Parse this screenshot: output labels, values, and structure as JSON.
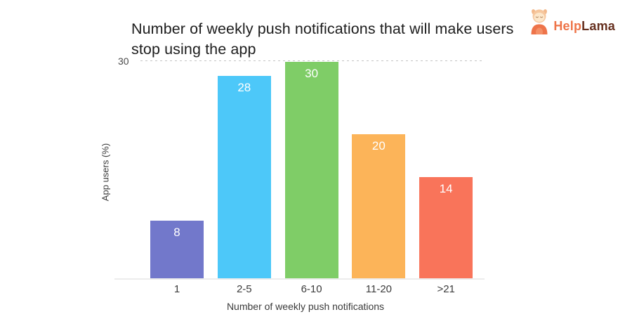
{
  "logo": {
    "brand_part1": "Help",
    "brand_part2": "Lama",
    "mascot": "llama-mascot-icon",
    "colors": {
      "brand_part1_color": "#EE7448",
      "brand_part2_color": "#66301F",
      "mascot_body": "#EE744A",
      "mascot_face": "#F6C79E"
    }
  },
  "chart_data": {
    "type": "bar",
    "title": "Number of weekly push notifications that will make users stop using the app",
    "title_lines": [
      "Number of weekly push notifications that will make users",
      "stop using the app"
    ],
    "categories": [
      "1",
      "2-5",
      "6-10",
      "11-20",
      ">21"
    ],
    "values": [
      8,
      28,
      30,
      20,
      14
    ],
    "bar_colors": [
      "#7278CB",
      "#4DC8F9",
      "#7FCD67",
      "#FCB459",
      "#F9745A"
    ],
    "value_label_color": "#FFFFFF",
    "xlabel": "Number of weekly push notifications",
    "ylabel": "App users (%)",
    "ylim": [
      0,
      30
    ],
    "y_ticks": [
      "30"
    ],
    "gridline": {
      "value": 30,
      "style": "dashed",
      "color": "#C4C4C4"
    },
    "grid": "single horizontal dashed line at y=30",
    "legend": "none",
    "background": "#FFFFFF"
  }
}
